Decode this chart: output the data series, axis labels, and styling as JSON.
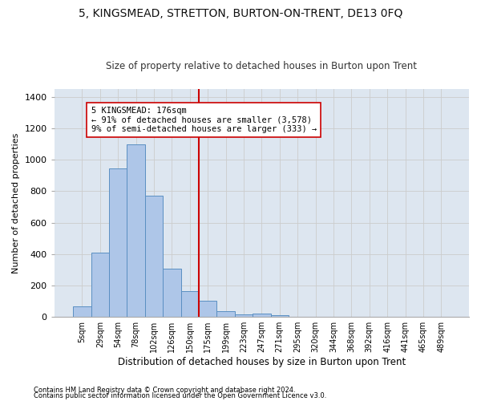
{
  "title": "5, KINGSMEAD, STRETTON, BURTON-ON-TRENT, DE13 0FQ",
  "subtitle": "Size of property relative to detached houses in Burton upon Trent",
  "xlabel": "Distribution of detached houses by size in Burton upon Trent",
  "ylabel": "Number of detached properties",
  "footnote1": "Contains HM Land Registry data © Crown copyright and database right 2024.",
  "footnote2": "Contains public sector information licensed under the Open Government Licence v3.0.",
  "bar_labels": [
    "5sqm",
    "29sqm",
    "54sqm",
    "78sqm",
    "102sqm",
    "126sqm",
    "150sqm",
    "175sqm",
    "199sqm",
    "223sqm",
    "247sqm",
    "271sqm",
    "295sqm",
    "320sqm",
    "344sqm",
    "368sqm",
    "392sqm",
    "416sqm",
    "441sqm",
    "465sqm",
    "489sqm"
  ],
  "bar_values": [
    65,
    410,
    945,
    1100,
    770,
    305,
    160,
    100,
    35,
    15,
    20,
    10,
    0,
    0,
    0,
    0,
    0,
    0,
    0,
    0,
    0
  ],
  "bar_color": "#aec6e8",
  "bar_edge_color": "#5a8fc2",
  "vline_x": 6.5,
  "vline_color": "#cc0000",
  "annotation_text": "5 KINGSMEAD: 176sqm\n← 91% of detached houses are smaller (3,578)\n9% of semi-detached houses are larger (333) →",
  "annotation_box_color": "#ffffff",
  "annotation_box_edge": "#cc0000",
  "ylim": [
    0,
    1450
  ],
  "grid_color": "#cccccc",
  "bg_color": "#dde6f0",
  "title_fontsize": 10,
  "subtitle_fontsize": 8.5
}
